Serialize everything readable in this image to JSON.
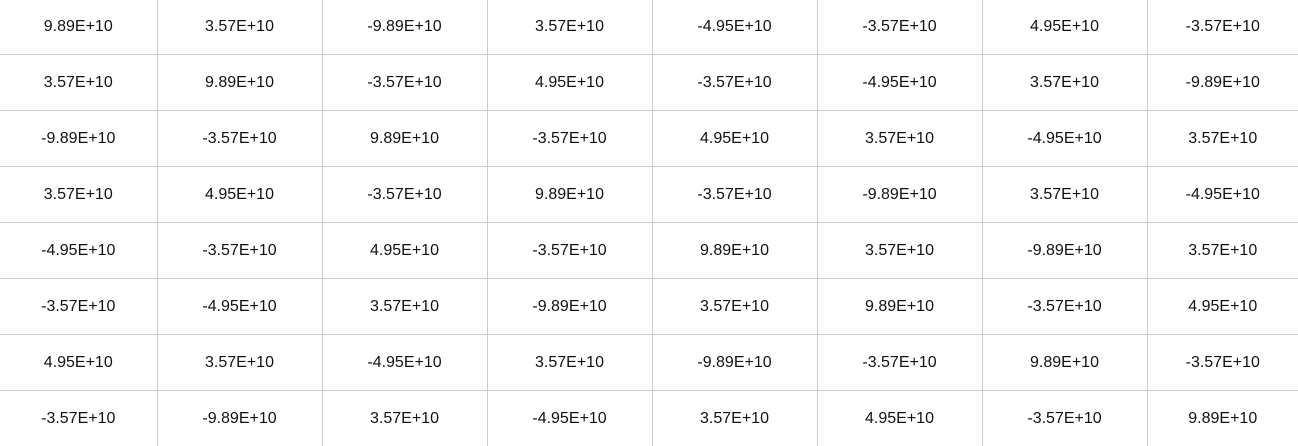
{
  "matrix": {
    "rows": [
      [
        "9.89E+10",
        "3.57E+10",
        "-9.89E+10",
        "3.57E+10",
        "-4.95E+10",
        "-3.57E+10",
        "4.95E+10",
        "-3.57E+10"
      ],
      [
        "3.57E+10",
        "9.89E+10",
        "-3.57E+10",
        "4.95E+10",
        "-3.57E+10",
        "-4.95E+10",
        "3.57E+10",
        "-9.89E+10"
      ],
      [
        "-9.89E+10",
        "-3.57E+10",
        "9.89E+10",
        "-3.57E+10",
        "4.95E+10",
        "3.57E+10",
        "-4.95E+10",
        "3.57E+10"
      ],
      [
        "3.57E+10",
        "4.95E+10",
        "-3.57E+10",
        "9.89E+10",
        "-3.57E+10",
        "-9.89E+10",
        "3.57E+10",
        "-4.95E+10"
      ],
      [
        "-4.95E+10",
        "-3.57E+10",
        "4.95E+10",
        "-3.57E+10",
        "9.89E+10",
        "3.57E+10",
        "-9.89E+10",
        "3.57E+10"
      ],
      [
        "-3.57E+10",
        "-4.95E+10",
        "3.57E+10",
        "-9.89E+10",
        "3.57E+10",
        "9.89E+10",
        "-3.57E+10",
        "4.95E+10"
      ],
      [
        "4.95E+10",
        "3.57E+10",
        "-4.95E+10",
        "3.57E+10",
        "-9.89E+10",
        "-3.57E+10",
        "9.89E+10",
        "-3.57E+10"
      ],
      [
        "-3.57E+10",
        "-9.89E+10",
        "3.57E+10",
        "-4.95E+10",
        "3.57E+10",
        "4.95E+10",
        "-3.57E+10",
        "9.89E+10"
      ]
    ]
  }
}
